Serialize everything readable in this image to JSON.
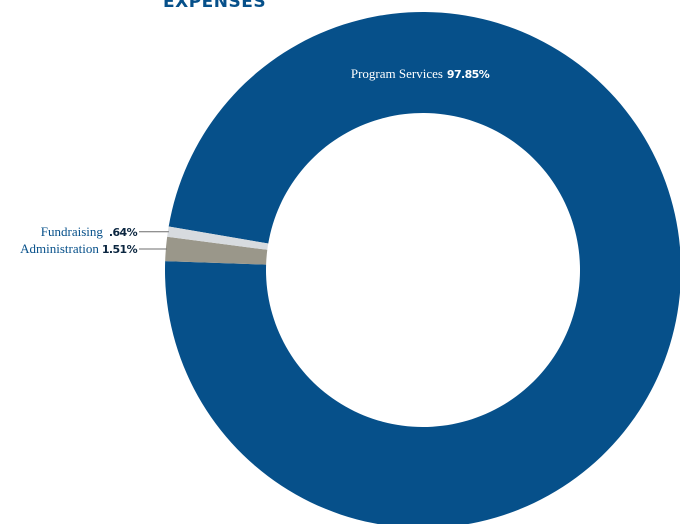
{
  "chart_data": {
    "type": "pie",
    "title": "EXPENSES",
    "slices": [
      {
        "label": "Program Services",
        "value": 97.85,
        "value_label": "97.85%",
        "color": "#06508a"
      },
      {
        "label": "Administration",
        "value": 1.51,
        "value_label": "1.51%",
        "color": "#9a978a"
      },
      {
        "label": "Fundraising",
        "value": 0.64,
        "value_label": ".64%",
        "color": "#d7dbdf"
      }
    ]
  },
  "colors": {
    "title": "#06508a",
    "label_text": "#06508a",
    "percent_text": "#0b2640",
    "inner_label_text": "#ffffff",
    "leader_line": "#6d6d6d"
  }
}
